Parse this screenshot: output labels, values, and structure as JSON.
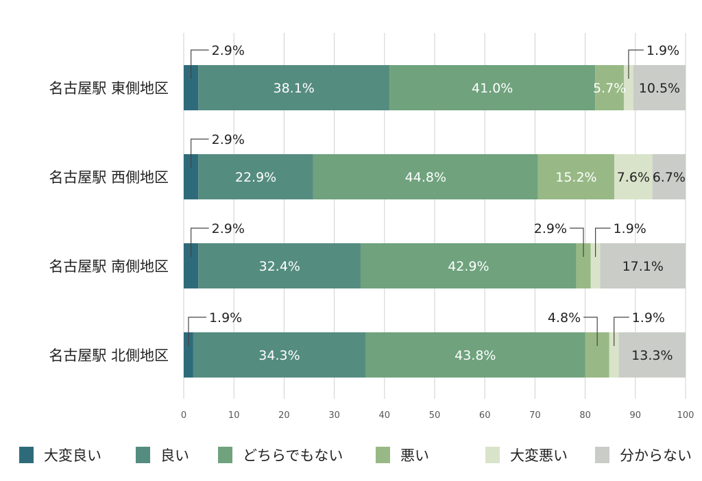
{
  "chart_data": {
    "type": "bar",
    "orientation": "horizontal",
    "stacked": true,
    "categories": [
      "名古屋駅 東側地区",
      "名古屋駅 西側地区",
      "名古屋駅 南側地区",
      "名古屋駅 北側地区"
    ],
    "series": [
      {
        "name": "大変良い",
        "color": "#2e6b7a",
        "values": [
          2.9,
          2.9,
          2.9,
          1.9
        ],
        "labels": [
          "2.9%",
          "2.9%",
          "2.9%",
          "1.9%"
        ]
      },
      {
        "name": "良い",
        "color": "#558c80",
        "values": [
          38.1,
          22.9,
          32.4,
          34.3
        ],
        "labels": [
          "38.1%",
          "22.9%",
          "32.4%",
          "34.3%"
        ]
      },
      {
        "name": "どちらでもない",
        "color": "#6fa27d",
        "values": [
          41.0,
          44.8,
          42.9,
          43.8
        ],
        "labels": [
          "41.0%",
          "44.8%",
          "42.9%",
          "43.8%"
        ]
      },
      {
        "name": "悪い",
        "color": "#98b986",
        "values": [
          5.7,
          15.2,
          2.9,
          4.8
        ],
        "labels": [
          "5.7%",
          "15.2%",
          "2.9%",
          "4.8%"
        ]
      },
      {
        "name": "大変悪い",
        "color": "#d9e3c9",
        "values": [
          1.9,
          7.6,
          1.9,
          1.9
        ],
        "labels": [
          "1.9%",
          "7.6%",
          "1.9%",
          "1.9%"
        ]
      },
      {
        "name": "分からない",
        "color": "#c9ccc7",
        "values": [
          10.5,
          6.7,
          17.1,
          13.3
        ],
        "labels": [
          "10.5%",
          "6.7%",
          "17.1%",
          "13.3%"
        ]
      }
    ],
    "xlim": [
      0,
      100
    ],
    "xticks": [
      "0",
      "10",
      "20",
      "30",
      "40",
      "50",
      "60",
      "70",
      "80",
      "90",
      "100"
    ],
    "grid": true,
    "legend_position": "bottom"
  }
}
